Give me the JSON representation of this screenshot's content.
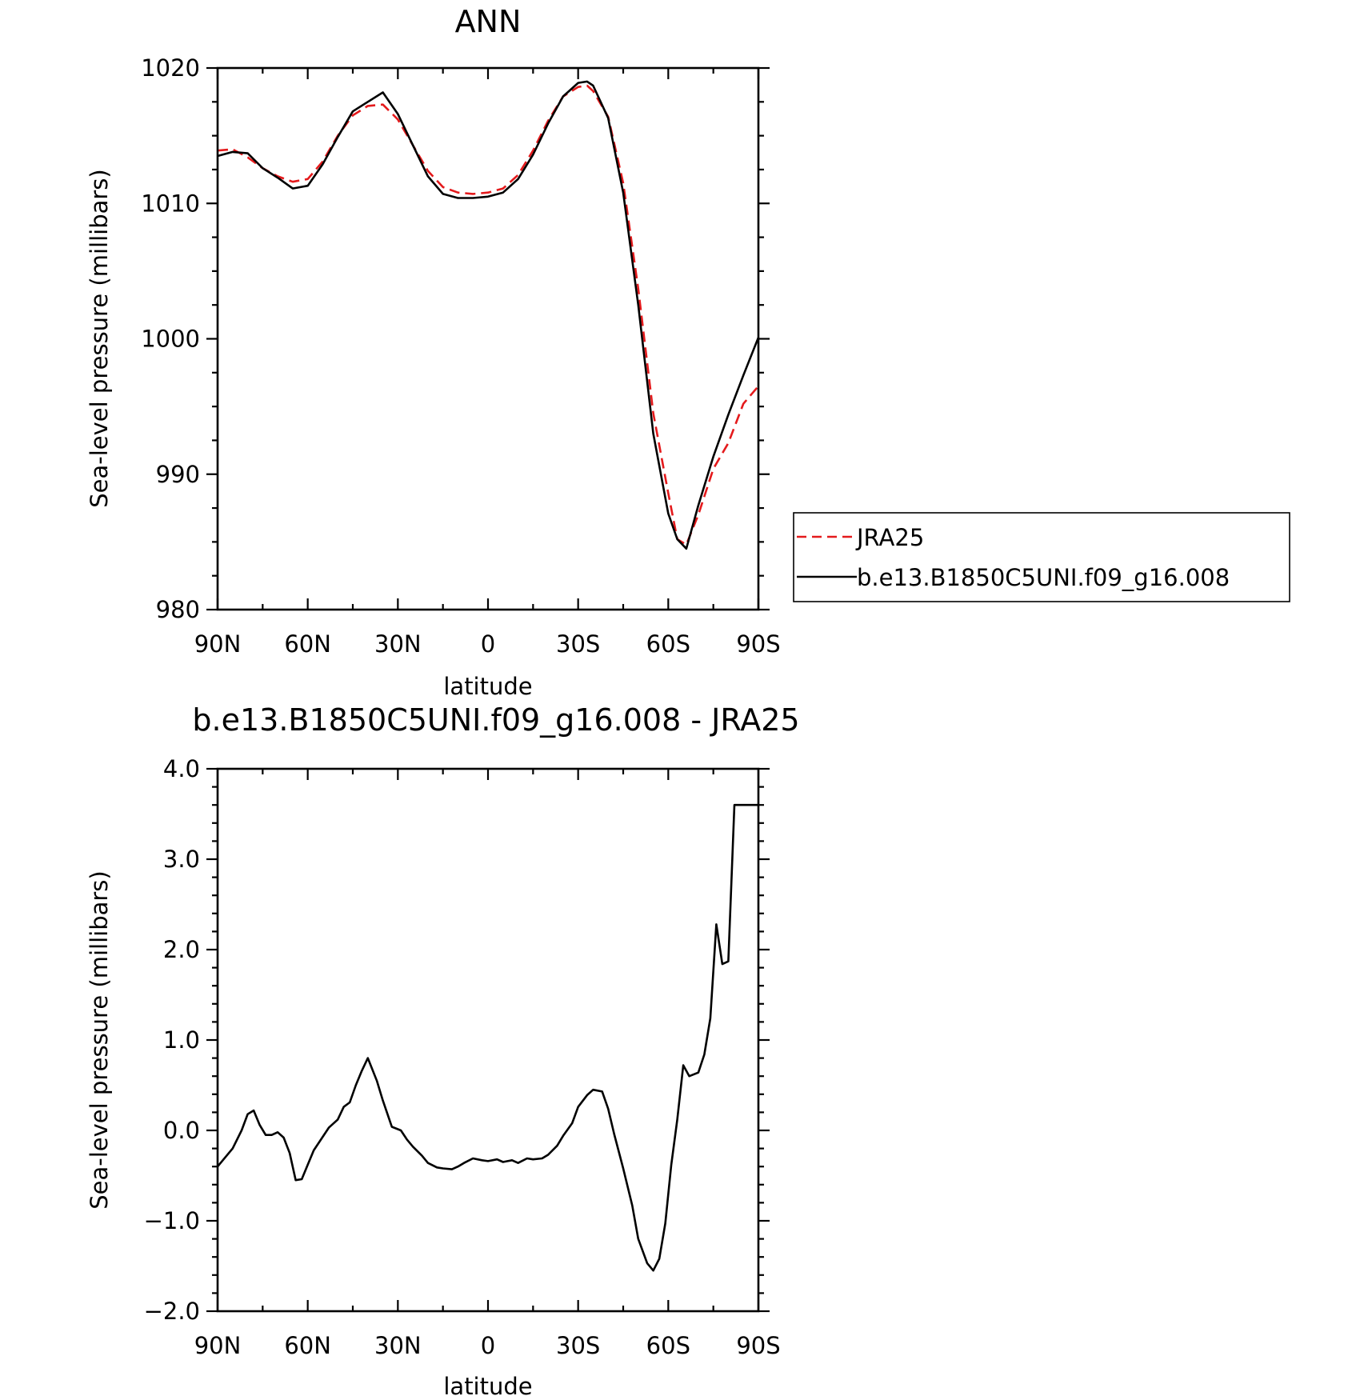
{
  "chart_data": [
    {
      "type": "line",
      "title": "ANN",
      "xlabel": "latitude",
      "ylabel": "Sea-level pressure (millibars)",
      "xlim": [
        90,
        -90
      ],
      "ylim": [
        980,
        1020
      ],
      "x_ticks": [
        90,
        60,
        30,
        0,
        -30,
        -60,
        -90
      ],
      "x_tick_labels": [
        "90N",
        "60N",
        "30N",
        "0",
        "30S",
        "60S",
        "90S"
      ],
      "y_ticks": [
        980,
        990,
        1000,
        1010,
        1020
      ],
      "y_tick_labels": [
        "980",
        "990",
        "1000",
        "1010",
        "1020"
      ],
      "legend_position": "right",
      "series": [
        {
          "name": "JRA25",
          "color": "#e41a1c",
          "dash": "dashed",
          "x": [
            90,
            85,
            80,
            75,
            70,
            65,
            60,
            55,
            50,
            45,
            40,
            35,
            30,
            25,
            20,
            15,
            10,
            5,
            0,
            -5,
            -10,
            -15,
            -20,
            -25,
            -30,
            -33,
            -35,
            -40,
            -45,
            -50,
            -55,
            -60,
            -63,
            -66,
            -70,
            -75,
            -80,
            -85,
            -90
          ],
          "y": [
            1013.9,
            1014.0,
            1013.4,
            1012.6,
            1012.0,
            1011.6,
            1011.8,
            1013.1,
            1015.0,
            1016.5,
            1017.2,
            1017.3,
            1016.2,
            1014.3,
            1012.4,
            1011.2,
            1010.8,
            1010.7,
            1010.8,
            1011.1,
            1012.1,
            1013.9,
            1016.1,
            1017.9,
            1018.6,
            1018.7,
            1018.3,
            1016.4,
            1011.5,
            1003.7,
            994.5,
            988.6,
            985.2,
            984.8,
            987.0,
            990.4,
            992.3,
            995.2,
            996.5
          ]
        },
        {
          "name": "b.e13.B1850C5UNI.f09_g16.008",
          "color": "#000000",
          "dash": "solid",
          "x": [
            90,
            85,
            80,
            75,
            70,
            65,
            60,
            55,
            50,
            45,
            40,
            35,
            30,
            25,
            20,
            15,
            10,
            5,
            0,
            -5,
            -10,
            -15,
            -20,
            -25,
            -30,
            -33,
            -35,
            -40,
            -45,
            -50,
            -55,
            -60,
            -63,
            -66,
            -70,
            -75,
            -80,
            -85,
            -90
          ],
          "y": [
            1013.5,
            1013.8,
            1013.7,
            1012.6,
            1011.9,
            1011.1,
            1011.3,
            1012.9,
            1014.9,
            1016.8,
            1017.5,
            1018.2,
            1016.6,
            1014.3,
            1012.0,
            1010.7,
            1010.4,
            1010.4,
            1010.5,
            1010.8,
            1011.8,
            1013.6,
            1015.9,
            1017.9,
            1018.9,
            1019.0,
            1018.7,
            1016.3,
            1010.8,
            1002.5,
            993.0,
            987.1,
            985.2,
            984.5,
            987.7,
            991.3,
            994.4,
            997.3,
            1000.1
          ]
        }
      ],
      "legend_labels": [
        "JRA25",
        "b.e13.B1850C5UNI.f09_g16.008"
      ]
    },
    {
      "type": "line",
      "title": "b.e13.B1850C5UNI.f09_g16.008 - JRA25",
      "xlabel": "latitude",
      "ylabel": "Sea-level pressure (millibars)",
      "xlim": [
        90,
        -90
      ],
      "ylim": [
        -2.0,
        4.0
      ],
      "x_ticks": [
        90,
        60,
        30,
        0,
        -30,
        -60,
        -90
      ],
      "x_tick_labels": [
        "90N",
        "60N",
        "30N",
        "0",
        "30S",
        "60S",
        "90S"
      ],
      "y_ticks": [
        -2.0,
        -1.0,
        0.0,
        1.0,
        2.0,
        3.0,
        4.0
      ],
      "y_tick_labels": [
        "−2.0",
        "−1.0",
        "0.0",
        "1.0",
        "2.0",
        "3.0",
        "4.0"
      ],
      "series": [
        {
          "color": "#000000",
          "dash": "solid",
          "x": [
            90,
            85,
            82,
            80,
            78,
            76,
            74,
            72,
            70,
            68,
            66,
            64,
            62,
            60,
            58,
            56,
            53,
            50,
            48,
            46,
            44,
            42,
            40,
            37,
            35,
            32,
            29,
            27,
            25,
            22,
            20,
            17,
            15,
            12,
            10,
            8,
            5,
            2,
            0,
            -3,
            -5,
            -8,
            -10,
            -13,
            -15,
            -18,
            -20,
            -23,
            -25,
            -28,
            -30,
            -33,
            -35,
            -38,
            -40,
            -42,
            -45,
            -48,
            -50,
            -53,
            -55,
            -57,
            -59,
            -61,
            -63,
            -65,
            -67,
            -70,
            -72,
            -74,
            -76,
            -78,
            -80,
            -82,
            -83,
            -84,
            -87,
            -89,
            -90
          ],
          "y": [
            -0.4,
            -0.2,
            0.0,
            0.18,
            0.22,
            0.06,
            -0.05,
            -0.05,
            -0.02,
            -0.08,
            -0.25,
            -0.55,
            -0.54,
            -0.38,
            -0.22,
            -0.12,
            0.03,
            0.12,
            0.26,
            0.31,
            0.5,
            0.66,
            0.8,
            0.55,
            0.33,
            0.04,
            0.0,
            -0.1,
            -0.18,
            -0.28,
            -0.36,
            -0.41,
            -0.42,
            -0.43,
            -0.4,
            -0.36,
            -0.31,
            -0.33,
            -0.34,
            -0.32,
            -0.35,
            -0.33,
            -0.36,
            -0.31,
            -0.32,
            -0.31,
            -0.27,
            -0.17,
            -0.06,
            0.08,
            0.26,
            0.39,
            0.45,
            0.43,
            0.24,
            -0.04,
            -0.42,
            -0.83,
            -1.2,
            -1.47,
            -1.55,
            -1.42,
            -1.03,
            -0.38,
            0.12,
            0.72,
            0.6,
            0.64,
            0.84,
            1.24,
            2.28,
            1.84,
            1.87,
            3.6,
            3.6,
            3.6,
            3.6,
            3.6,
            3.6
          ]
        }
      ]
    }
  ]
}
